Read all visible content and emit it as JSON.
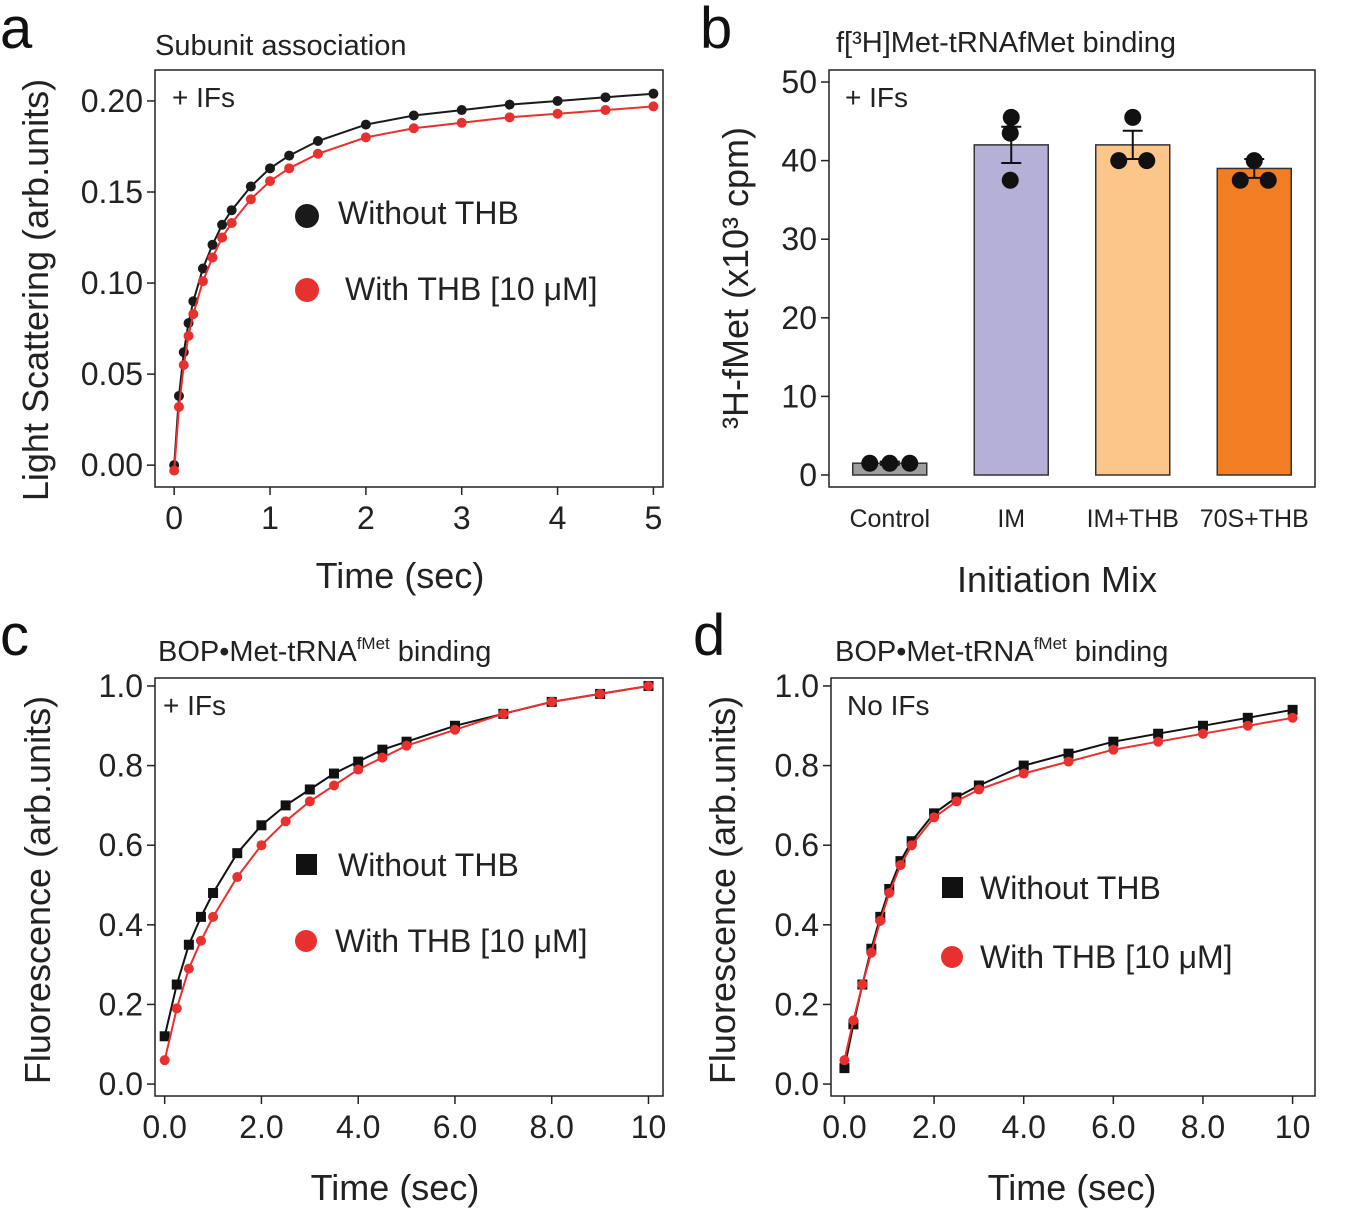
{
  "panels": {
    "a": {
      "letter": "a",
      "title": "Subunit association",
      "condition": "+ IFs",
      "xlabel": "Time (sec)",
      "ylabel": "Light Scattering (arb.units)",
      "legend": [
        "Without THB",
        "With THB [10 μM]"
      ]
    },
    "b": {
      "letter": "b",
      "title": "f[³H]Met-tRNAfMet binding",
      "condition": "+ IFs",
      "xlabel": "Initiation Mix",
      "ylabel": "³H-fMet (x10³ cpm)"
    },
    "c": {
      "letter": "c",
      "title_main": "BOP•Met-tRNA",
      "title_sup": "fMet",
      "title_tail": " binding",
      "condition": "+ IFs",
      "xlabel": "Time (sec)",
      "ylabel": "Fluorescence (arb.units)",
      "legend": [
        "Without THB",
        "With THB [10 μM]"
      ]
    },
    "d": {
      "letter": "d",
      "title_main": "BOP•Met-tRNA",
      "title_sup": "fMet",
      "title_tail": " binding",
      "condition": "No IFs",
      "xlabel": "Time (sec)",
      "ylabel": "Fluorescence (arb.units)",
      "legend": [
        "Without THB",
        "With THB [10 μM]"
      ]
    }
  },
  "chart_data": [
    {
      "id": "a",
      "type": "scatter",
      "title": "Subunit association",
      "xlabel": "Time (sec)",
      "ylabel": "Light Scattering (arb.units)",
      "xlim": [
        -0.2,
        5.1
      ],
      "ylim": [
        -0.012,
        0.217
      ],
      "xticks": [
        "0",
        "1",
        "2",
        "3",
        "4",
        "5"
      ],
      "xtick_values": [
        0,
        1,
        2,
        3,
        4,
        5
      ],
      "yticks": [
        "0.00",
        "0.05",
        "0.10",
        "0.15",
        "0.20"
      ],
      "ytick_values": [
        0,
        0.05,
        0.1,
        0.15,
        0.2
      ],
      "series": [
        {
          "name": "Without THB",
          "color": "#1a1a1a",
          "marker": "circle",
          "x": [
            0,
            0.05,
            0.1,
            0.15,
            0.2,
            0.3,
            0.4,
            0.5,
            0.6,
            0.8,
            1.0,
            1.2,
            1.5,
            2.0,
            2.5,
            3.0,
            3.5,
            4.0,
            4.5,
            5.0
          ],
          "y": [
            0.0,
            0.038,
            0.062,
            0.078,
            0.09,
            0.108,
            0.121,
            0.132,
            0.14,
            0.153,
            0.163,
            0.17,
            0.178,
            0.187,
            0.192,
            0.195,
            0.198,
            0.2,
            0.202,
            0.204
          ]
        },
        {
          "name": "With THB [10 μM]",
          "color": "#e8302f",
          "marker": "circle",
          "x": [
            0,
            0.05,
            0.1,
            0.15,
            0.2,
            0.3,
            0.4,
            0.5,
            0.6,
            0.8,
            1.0,
            1.2,
            1.5,
            2.0,
            2.5,
            3.0,
            3.5,
            4.0,
            4.5,
            5.0
          ],
          "y": [
            -0.003,
            0.032,
            0.055,
            0.071,
            0.083,
            0.101,
            0.114,
            0.125,
            0.133,
            0.146,
            0.156,
            0.163,
            0.171,
            0.18,
            0.185,
            0.188,
            0.191,
            0.193,
            0.195,
            0.197
          ]
        }
      ]
    },
    {
      "id": "b",
      "type": "bar",
      "title": "f[³H]Met-tRNAfMet binding",
      "xlabel": "Initiation Mix",
      "ylabel": "³H-fMet (x10³ cpm)",
      "ylim": [
        0,
        50
      ],
      "yticks": [
        "0",
        "10",
        "20",
        "30",
        "40",
        "50"
      ],
      "ytick_values": [
        0,
        10,
        20,
        30,
        40,
        50
      ],
      "categories": [
        "Control",
        "IM",
        "IM+THB",
        "70S+THB"
      ],
      "values": [
        1.5,
        42.0,
        42.0,
        39.0
      ],
      "errors": [
        0.2,
        2.3,
        1.8,
        1.2
      ],
      "colors": [
        "#9e9e9e",
        "#b4b0d8",
        "#fcc58a",
        "#f27d22"
      ],
      "points": [
        [
          1.5,
          1.5,
          1.5
        ],
        [
          45.5,
          43.5,
          37.5
        ],
        [
          45.5,
          40.0,
          40.0
        ],
        [
          40.0,
          37.5,
          37.5
        ]
      ]
    },
    {
      "id": "c",
      "type": "scatter",
      "title": "BOP•Met-tRNAfMet binding",
      "xlabel": "Time (sec)",
      "ylabel": "Fluorescence (arb.units)",
      "xlim": [
        -0.2,
        10.3
      ],
      "ylim": [
        -0.03,
        1.02
      ],
      "xticks": [
        "0.0",
        "2.0",
        "4.0",
        "6.0",
        "8.0",
        "10"
      ],
      "xtick_values": [
        0,
        2,
        4,
        6,
        8,
        10
      ],
      "yticks": [
        "0.0",
        "0.2",
        "0.4",
        "0.6",
        "0.8",
        "1.0"
      ],
      "ytick_values": [
        0,
        0.2,
        0.4,
        0.6,
        0.8,
        1.0
      ],
      "series": [
        {
          "name": "Without THB",
          "color": "#111111",
          "marker": "square",
          "x": [
            0,
            0.25,
            0.5,
            0.75,
            1.0,
            1.5,
            2.0,
            2.5,
            3.0,
            3.5,
            4.0,
            4.5,
            5.0,
            6.0,
            7.0,
            8.0,
            9.0,
            10.0
          ],
          "y": [
            0.12,
            0.25,
            0.35,
            0.42,
            0.48,
            0.58,
            0.65,
            0.7,
            0.74,
            0.78,
            0.81,
            0.84,
            0.86,
            0.9,
            0.93,
            0.96,
            0.98,
            1.0
          ]
        },
        {
          "name": "With THB [10 μM]",
          "color": "#e8302f",
          "marker": "circle",
          "x": [
            0,
            0.25,
            0.5,
            0.75,
            1.0,
            1.5,
            2.0,
            2.5,
            3.0,
            3.5,
            4.0,
            4.5,
            5.0,
            6.0,
            7.0,
            8.0,
            9.0,
            10.0
          ],
          "y": [
            0.06,
            0.19,
            0.29,
            0.36,
            0.42,
            0.52,
            0.6,
            0.66,
            0.71,
            0.75,
            0.79,
            0.82,
            0.85,
            0.89,
            0.93,
            0.96,
            0.98,
            1.0
          ]
        }
      ]
    },
    {
      "id": "d",
      "type": "scatter",
      "title": "BOP•Met-tRNAfMet binding",
      "xlabel": "Time (sec)",
      "ylabel": "Fluorescence (arb.units)",
      "xlim": [
        -0.3,
        10.5
      ],
      "ylim": [
        -0.03,
        1.02
      ],
      "xticks": [
        "0.0",
        "2.0",
        "4.0",
        "6.0",
        "8.0",
        "10"
      ],
      "xtick_values": [
        0,
        2,
        4,
        6,
        8,
        10
      ],
      "yticks": [
        "0.0",
        "0.2",
        "0.4",
        "0.6",
        "0.8",
        "1.0"
      ],
      "ytick_values": [
        0,
        0.2,
        0.4,
        0.6,
        0.8,
        1.0
      ],
      "series": [
        {
          "name": "Without THB",
          "color": "#111111",
          "marker": "square",
          "x": [
            0,
            0.2,
            0.4,
            0.6,
            0.8,
            1.0,
            1.25,
            1.5,
            2.0,
            2.5,
            3.0,
            4.0,
            5.0,
            6.0,
            7.0,
            8.0,
            9.0,
            10.0
          ],
          "y": [
            0.04,
            0.15,
            0.25,
            0.34,
            0.42,
            0.49,
            0.56,
            0.61,
            0.68,
            0.72,
            0.75,
            0.8,
            0.83,
            0.86,
            0.88,
            0.9,
            0.92,
            0.94
          ]
        },
        {
          "name": "With THB [10 μM]",
          "color": "#e8302f",
          "marker": "circle",
          "x": [
            0,
            0.2,
            0.4,
            0.6,
            0.8,
            1.0,
            1.25,
            1.5,
            2.0,
            2.5,
            3.0,
            4.0,
            5.0,
            6.0,
            7.0,
            8.0,
            9.0,
            10.0
          ],
          "y": [
            0.06,
            0.16,
            0.25,
            0.33,
            0.41,
            0.48,
            0.55,
            0.6,
            0.67,
            0.71,
            0.74,
            0.78,
            0.81,
            0.84,
            0.86,
            0.88,
            0.9,
            0.92
          ]
        }
      ]
    }
  ]
}
